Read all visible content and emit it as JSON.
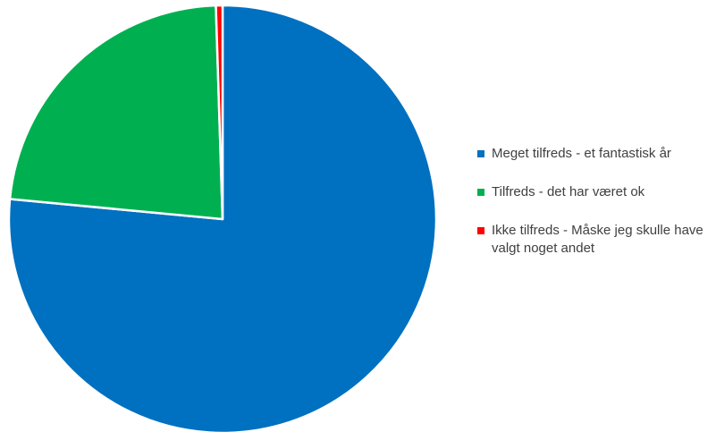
{
  "chart_data": {
    "type": "pie",
    "title": "",
    "categories": [
      "Meget tilfreds - et fantastisk år",
      "Tilfreds - det har været ok",
      "Ikke tilfreds - Måske jeg skulle have valgt noget andet"
    ],
    "values": [
      76.5,
      23.0,
      0.5
    ],
    "colors": [
      "#0070C0",
      "#00B050",
      "#FF0000"
    ],
    "legend_position": "right",
    "start_angle": "12 o'clock",
    "direction": "clockwise"
  },
  "legend": {
    "items": [
      {
        "label": "Meget tilfreds - et fantastisk år",
        "color": "#0070C0"
      },
      {
        "label": "Tilfreds - det har været ok",
        "color": "#00B050"
      },
      {
        "label": "Ikke tilfreds - Måske jeg skulle have valgt noget andet",
        "color": "#FF0000"
      }
    ]
  }
}
